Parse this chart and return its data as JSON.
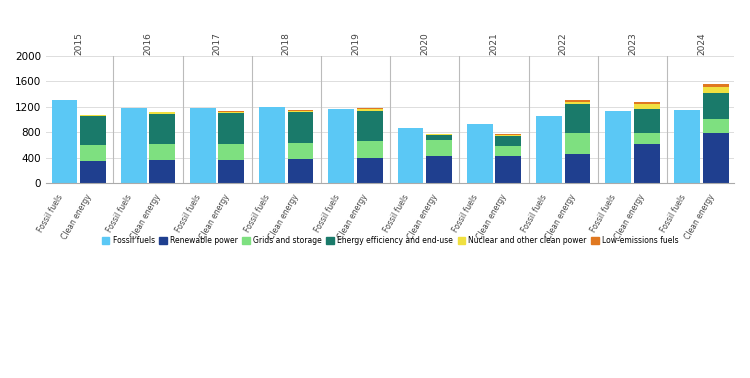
{
  "years": [
    2015,
    2016,
    2017,
    2018,
    2019,
    2020,
    2021,
    2022,
    2023,
    2024
  ],
  "fossil_fuels_bar": [
    1310,
    1175,
    1185,
    1195,
    1165,
    870,
    930,
    1055,
    1130,
    1155
  ],
  "clean_energy": {
    "renewable_power": [
      350,
      360,
      360,
      375,
      395,
      425,
      435,
      455,
      610,
      790
    ],
    "grids_and_storage": [
      245,
      250,
      250,
      250,
      265,
      255,
      155,
      340,
      185,
      225
    ],
    "energy_efficiency": [
      465,
      480,
      490,
      490,
      480,
      75,
      155,
      445,
      370,
      400
    ],
    "nuclear_clean_power": [
      10,
      25,
      20,
      20,
      25,
      15,
      15,
      30,
      80,
      95
    ],
    "low_emissions_fuels": [
      0,
      10,
      10,
      10,
      10,
      10,
      10,
      30,
      25,
      55
    ]
  },
  "colors": {
    "fossil_fuels": "#5BC8F5",
    "renewable_power": "#1F3F8F",
    "grids_and_storage": "#7EE080",
    "energy_efficiency": "#1A7A6A",
    "nuclear_clean_power": "#F0E040",
    "low_emissions_fuels": "#E07820"
  },
  "legend_labels": [
    "Fossil fuels",
    "Renewable power",
    "Grids and storage",
    "Energy efficiency and end-use",
    "Nuclear and other clean power",
    "Low-emissions fuels"
  ],
  "yticks": [
    0,
    400,
    800,
    1200,
    1600,
    2000
  ],
  "ylim": [
    0,
    2000
  ],
  "background_color": "#ffffff",
  "grid_color": "#dddddd"
}
